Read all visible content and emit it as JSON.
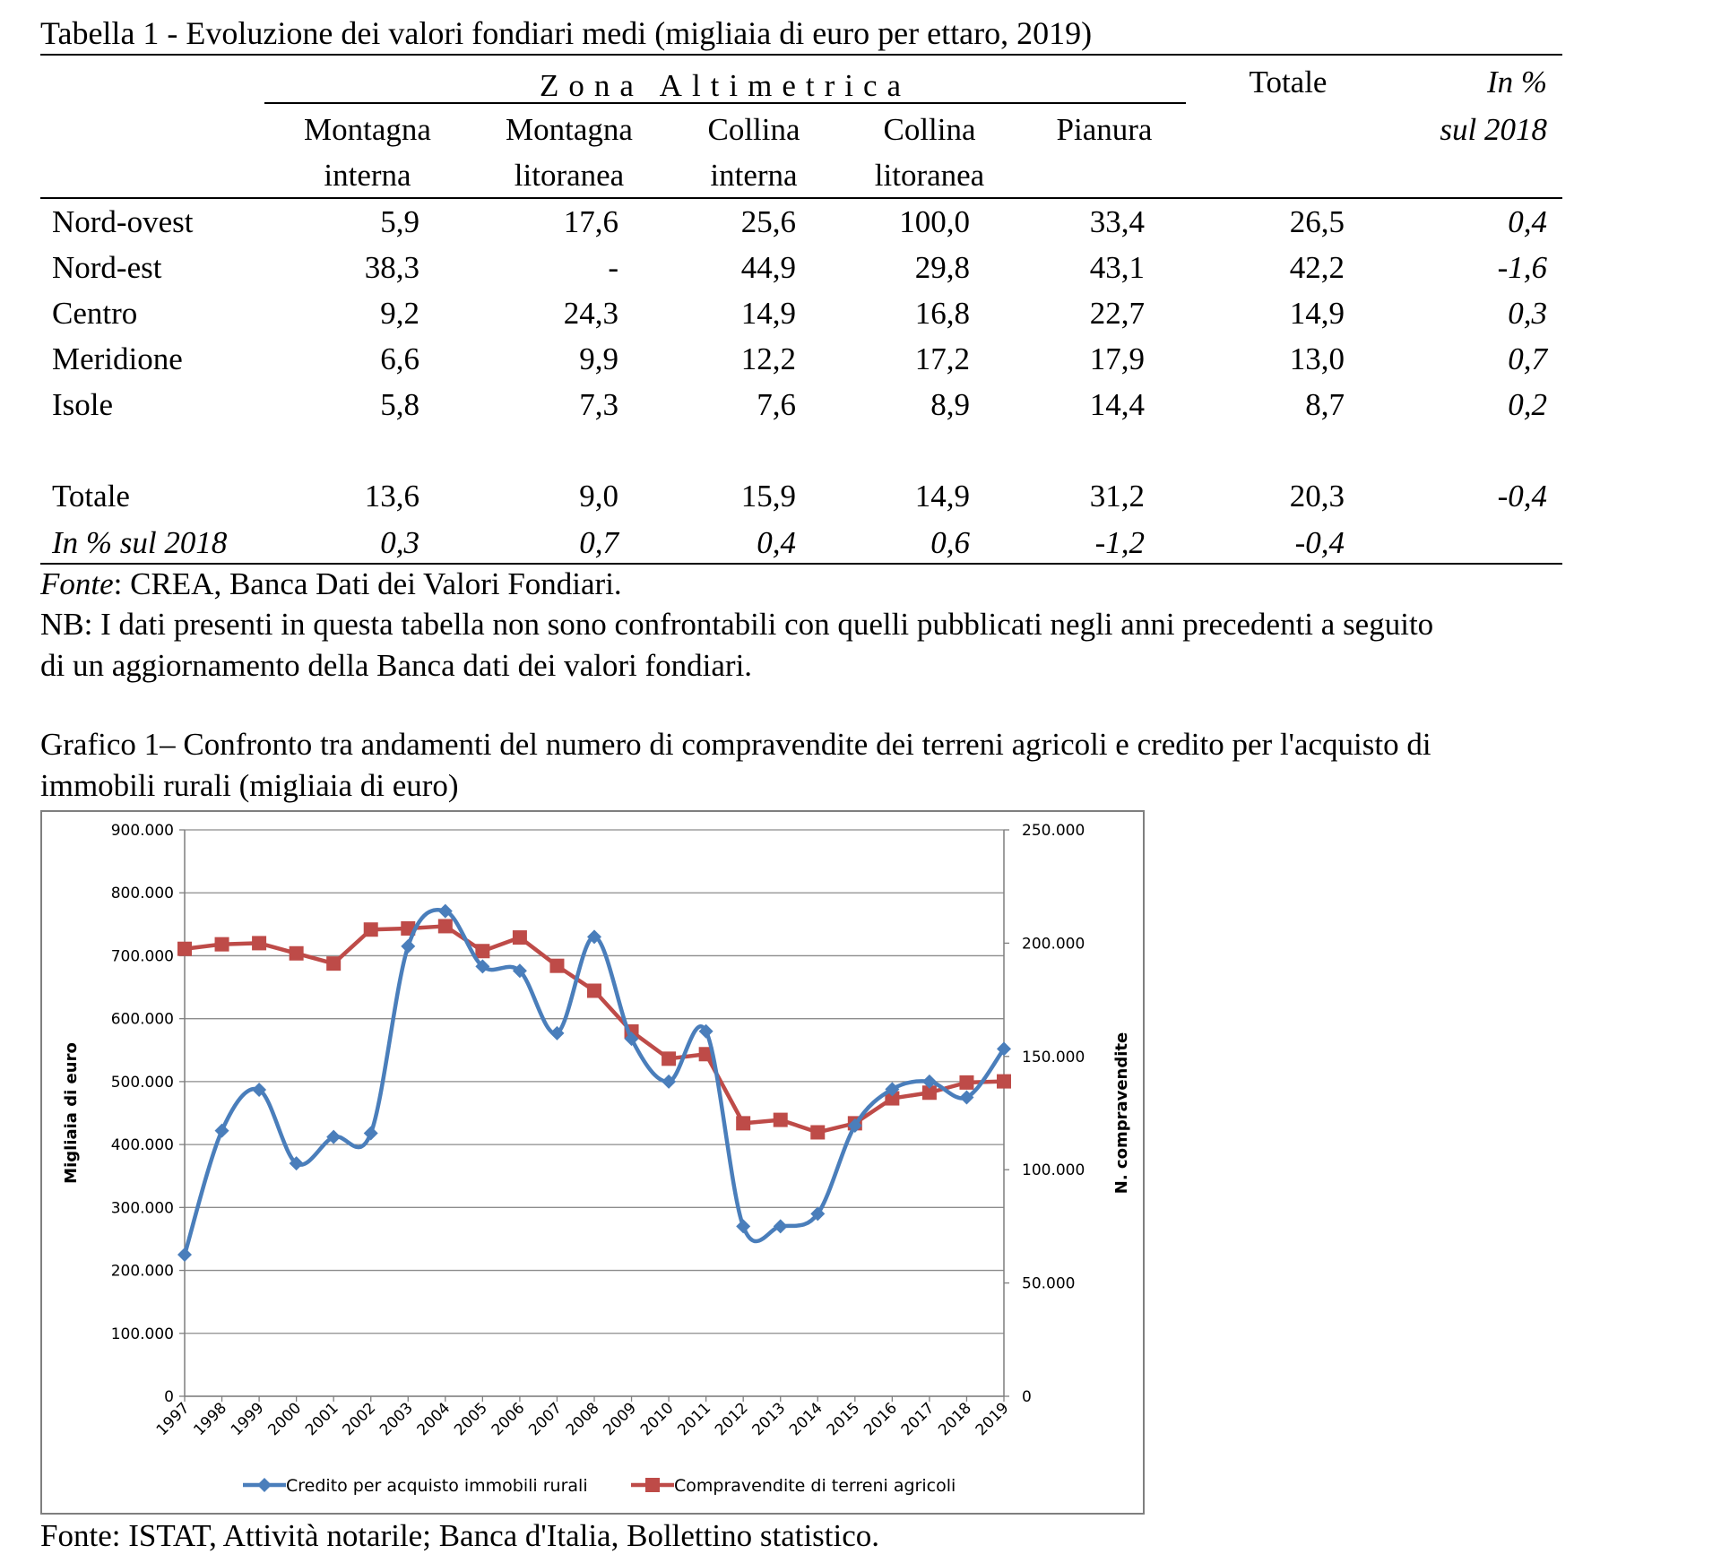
{
  "table": {
    "title": "Tabella 1 - Evoluzione dei valori fondiari medi (migliaia di euro per ettaro, 2019)",
    "zona_header": "Zona Altimetrica",
    "columns": [
      {
        "line1": "Montagna",
        "line2": "interna"
      },
      {
        "line1": "Montagna",
        "line2": "litoranea"
      },
      {
        "line1": "Collina",
        "line2": "interna"
      },
      {
        "line1": "Collina",
        "line2": "litoranea"
      },
      {
        "line1": "Pianura",
        "line2": ""
      }
    ],
    "totale_header": "Totale",
    "pct_header_line1": "In %",
    "pct_header_line2": "sul 2018",
    "rows": [
      {
        "label": "Nord-ovest",
        "values": [
          "5,9",
          "17,6",
          "25,6",
          "100,0",
          "33,4",
          "26,5",
          "0,4"
        ]
      },
      {
        "label": "Nord-est",
        "values": [
          "38,3",
          "-",
          "44,9",
          "29,8",
          "43,1",
          "42,2",
          "-1,6"
        ]
      },
      {
        "label": "Centro",
        "values": [
          "9,2",
          "24,3",
          "14,9",
          "16,8",
          "22,7",
          "14,9",
          "0,3"
        ]
      },
      {
        "label": "Meridione",
        "values": [
          "6,6",
          "9,9",
          "12,2",
          "17,2",
          "17,9",
          "13,0",
          "0,7"
        ]
      },
      {
        "label": "Isole",
        "values": [
          "5,8",
          "7,3",
          "7,6",
          "8,9",
          "14,4",
          "8,7",
          "0,2"
        ]
      }
    ],
    "total_row": {
      "label": "Totale",
      "values": [
        "13,6",
        "9,0",
        "15,9",
        "14,9",
        "31,2",
        "20,3",
        "-0,4"
      ]
    },
    "pct_row": {
      "label": "In % sul 2018",
      "values": [
        "0,3",
        "0,7",
        "0,4",
        "0,6",
        "-1,2",
        "-0,4"
      ]
    }
  },
  "notes": {
    "fonte_label": "Fonte",
    "fonte_text": ": CREA, Banca Dati dei Valori Fondiari.",
    "nb_line1": "NB: I dati presenti in questa tabella non sono confrontabili con quelli pubblicati negli anni precedenti a seguito",
    "nb_line2": "di un aggiornamento della Banca dati dei valori fondiari."
  },
  "chart_caption": {
    "line1": "Grafico 1– Confronto tra andamenti del numero di compravendite dei terreni agricoli e credito per l'acquisto di",
    "line2": "immobili rurali (migliaia di euro)"
  },
  "chart_data": {
    "type": "line",
    "x": [
      "1997",
      "1998",
      "1999",
      "2000",
      "2001",
      "2002",
      "2003",
      "2004",
      "2005",
      "2006",
      "2007",
      "2008",
      "2009",
      "2010",
      "2011",
      "2012",
      "2013",
      "2014",
      "2015",
      "2016",
      "2017",
      "2018",
      "2019"
    ],
    "ylabel_left": "Migliaia di euro",
    "ylabel_right": "N. compravendite",
    "ylim_left": [
      0,
      900000
    ],
    "ylim_right": [
      0,
      250000
    ],
    "yticks_left": [
      "0",
      "100.000",
      "200.000",
      "300.000",
      "400.000",
      "500.000",
      "600.000",
      "700.000",
      "800.000",
      "900.000"
    ],
    "yticks_right": [
      "0",
      "50.000",
      "100.000",
      "150.000",
      "200.000",
      "250.000"
    ],
    "grid": true,
    "legend_position": "bottom",
    "series": [
      {
        "name": "Credito per acquisto immobili rurali",
        "axis": "left",
        "color": "#4a7ebb",
        "marker": "diamond",
        "smooth": true,
        "values": [
          225000,
          422000,
          487000,
          370000,
          412000,
          418000,
          715000,
          771000,
          683000,
          676000,
          577000,
          730000,
          568000,
          500000,
          580000,
          270000,
          270000,
          290000,
          430000,
          488000,
          500000,
          475000,
          552000
        ]
      },
      {
        "name": "Compravendite di terreni agricoli",
        "axis": "right",
        "color": "#be4b48",
        "marker": "square",
        "smooth": false,
        "values": [
          197500,
          199500,
          200000,
          195500,
          191000,
          206000,
          206500,
          207500,
          196500,
          202500,
          190000,
          179000,
          161000,
          149000,
          151000,
          120500,
          122000,
          116500,
          120500,
          131500,
          134000,
          138500,
          139000
        ]
      }
    ]
  },
  "chart_source": "Fonte: ISTAT, Attività notarile; Banca d'Italia, Bollettino statistico."
}
